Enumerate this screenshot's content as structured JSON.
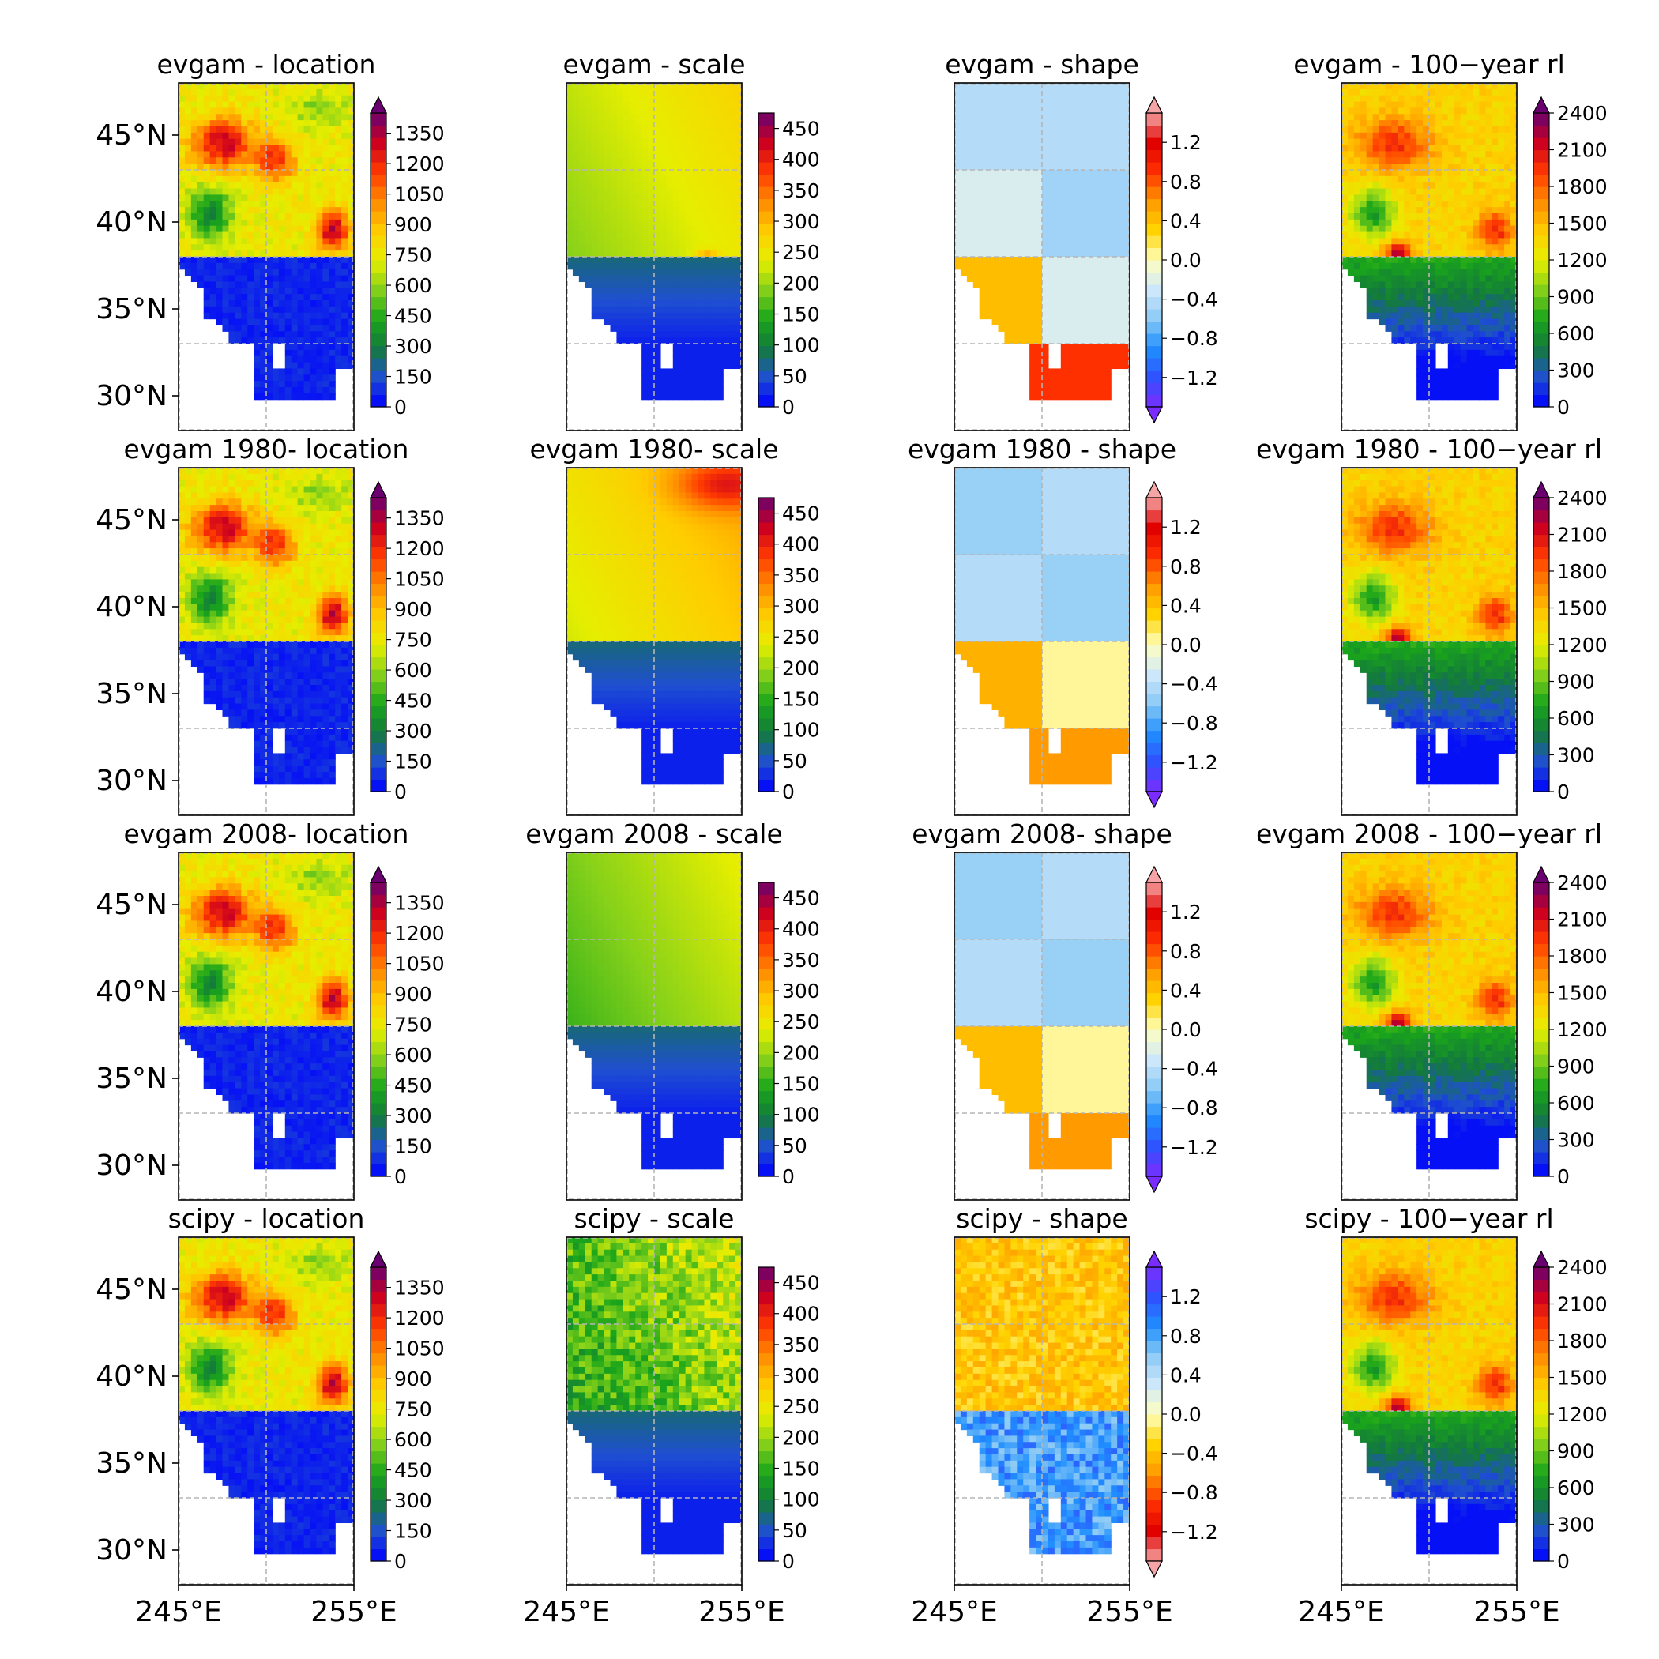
{
  "figure": {
    "rows": [
      {
        "id": "evgam",
        "panels": [
          {
            "title": "evgam - location",
            "var": "location",
            "pattern": "loc"
          },
          {
            "title": "evgam - scale",
            "var": "scale",
            "pattern": "scale_a"
          },
          {
            "title": "evgam - shape",
            "var": "shape",
            "pattern": "shape_a"
          },
          {
            "title": "evgam - 100−year rl",
            "var": "rl",
            "pattern": "rl"
          }
        ]
      },
      {
        "id": "evgam-1980",
        "panels": [
          {
            "title": "evgam 1980- location",
            "var": "location",
            "pattern": "loc"
          },
          {
            "title": "evgam 1980- scale",
            "var": "scale",
            "pattern": "scale_b"
          },
          {
            "title": "evgam 1980 - shape",
            "var": "shape",
            "pattern": "shape_b"
          },
          {
            "title": "evgam 1980 - 100−year rl",
            "var": "rl",
            "pattern": "rl"
          }
        ]
      },
      {
        "id": "evgam-2008",
        "panels": [
          {
            "title": "evgam 2008- location",
            "var": "location",
            "pattern": "loc"
          },
          {
            "title": "evgam 2008 - scale",
            "var": "scale",
            "pattern": "scale_c"
          },
          {
            "title": "evgam 2008- shape",
            "var": "shape",
            "pattern": "shape_c"
          },
          {
            "title": "evgam 2008 - 100−year rl",
            "var": "rl",
            "pattern": "rl"
          }
        ]
      },
      {
        "id": "scipy",
        "panels": [
          {
            "title": "scipy - location",
            "var": "location",
            "pattern": "loc"
          },
          {
            "title": "scipy - scale",
            "var": "scale",
            "pattern": "scale_d"
          },
          {
            "title": "scipy - shape",
            "var": "shape",
            "pattern": "shape_d"
          },
          {
            "title": "scipy - 100−year rl",
            "var": "rl",
            "pattern": "rl"
          }
        ]
      }
    ],
    "lat_ticks": [
      "45°N",
      "40°N",
      "35°N",
      "30°N"
    ],
    "lat_values": [
      45,
      40,
      35,
      30
    ],
    "lon_ticks": [
      "245°E",
      "255°E"
    ],
    "lon_values": [
      245,
      255
    ],
    "lat_range": [
      28,
      48
    ],
    "lon_range": [
      245,
      255
    ],
    "colorbars": {
      "location": {
        "ticks": [
          "0",
          "150",
          "300",
          "450",
          "600",
          "750",
          "900",
          "1050",
          "1200",
          "1350"
        ],
        "values": [
          0,
          150,
          300,
          450,
          600,
          750,
          900,
          1050,
          1200,
          1350
        ],
        "range": [
          0,
          1450
        ],
        "extend": "max"
      },
      "scale": {
        "ticks": [
          "0",
          "50",
          "100",
          "150",
          "200",
          "250",
          "300",
          "350",
          "400",
          "450"
        ],
        "values": [
          0,
          50,
          100,
          150,
          200,
          250,
          300,
          350,
          400,
          450
        ],
        "range": [
          0,
          475
        ],
        "extend": "none"
      },
      "shape": {
        "ticks": [
          "−1.2",
          "−0.8",
          "−0.4",
          "0.0",
          "0.4",
          "0.8",
          "1.2"
        ],
        "values": [
          -1.2,
          -0.8,
          -0.4,
          0.0,
          0.4,
          0.8,
          1.2
        ],
        "range": [
          -1.5,
          1.5
        ],
        "extend": "both"
      },
      "rl": {
        "ticks": [
          "0",
          "300",
          "600",
          "900",
          "1200",
          "1500",
          "1800",
          "2100",
          "2400"
        ],
        "values": [
          0,
          300,
          600,
          900,
          1200,
          1500,
          1800,
          2100,
          2400
        ],
        "range": [
          0,
          2400
        ],
        "extend": "max"
      }
    },
    "colormaps": {
      "hot": [
        "#0000ff",
        "#1f4fd0",
        "#137a3c",
        "#1aa51a",
        "#86d11a",
        "#e6ee00",
        "#ffcc00",
        "#ff8a00",
        "#ff3a00",
        "#cc0020",
        "#6a0070"
      ],
      "shape": [
        "#7a2cff",
        "#3050ff",
        "#1f8fff",
        "#8ccaf5",
        "#cfe8fa",
        "#ffffc0",
        "#ffd400",
        "#ff9a00",
        "#ff3000",
        "#e00000",
        "#f5a5a5"
      ],
      "shape_scipy": [
        "#f5a5a5",
        "#e00000",
        "#ff3000",
        "#ff9a00",
        "#ffd400",
        "#ffffc0",
        "#cfe8fa",
        "#8ccaf5",
        "#1f8fff",
        "#3050ff",
        "#7a2cff"
      ]
    }
  }
}
